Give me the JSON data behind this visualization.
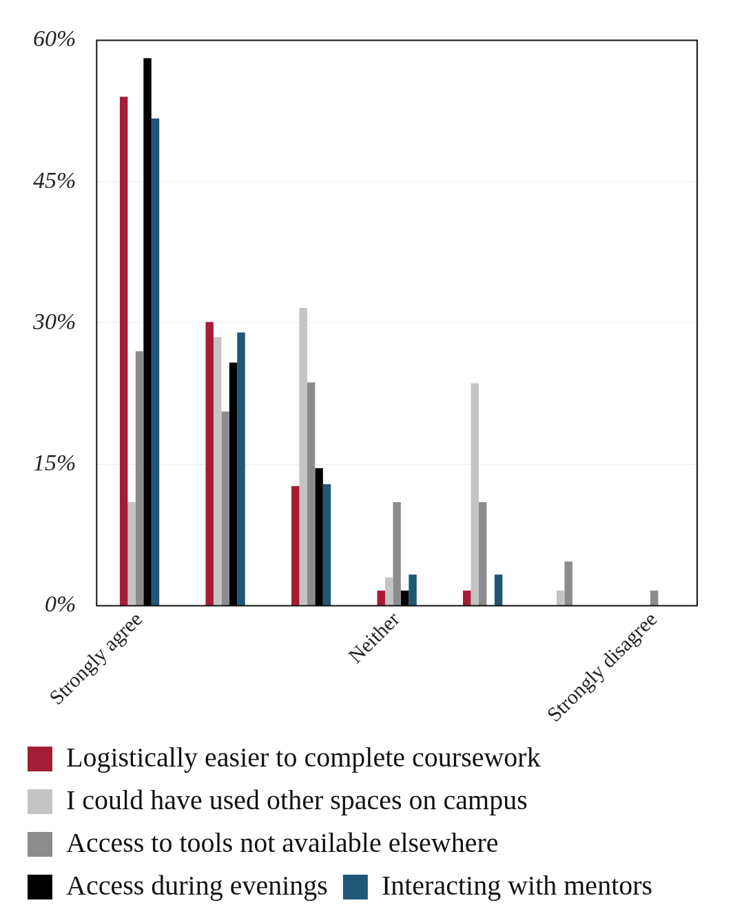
{
  "chart_data": {
    "type": "bar",
    "categories": [
      "Strongly agree",
      null,
      null,
      "Neither",
      null,
      null,
      "Strongly disagree"
    ],
    "series": [
      {
        "name": "Logistically easier to complete coursework",
        "color": "#a51c36",
        "values": [
          54,
          30.1,
          12.7,
          1.6,
          1.6,
          0,
          0
        ]
      },
      {
        "name": "I could have used other spaces on campus",
        "color": "#c4c4c4",
        "values": [
          11,
          28.5,
          31.6,
          3,
          23.6,
          1.6,
          0
        ]
      },
      {
        "name": "Access to tools not available elsewhere",
        "color": "#8c8c8c",
        "values": [
          27,
          20.6,
          23.7,
          11,
          11,
          4.7,
          1.6
        ]
      },
      {
        "name": "Access during evenings",
        "color": "#000000",
        "values": [
          58.1,
          25.8,
          14.6,
          1.6,
          0,
          0,
          0
        ]
      },
      {
        "name": "Interacting with mentors",
        "color": "#1f5876",
        "values": [
          51.7,
          29,
          12.9,
          3.3,
          3.3,
          0,
          0
        ]
      }
    ],
    "ylim": [
      0,
      60
    ],
    "yticks": [
      {
        "value": 0,
        "label": "0%"
      },
      {
        "value": 15,
        "label": "15%"
      },
      {
        "value": 30,
        "label": "30%"
      },
      {
        "value": 45,
        "label": "45%"
      },
      {
        "value": 60,
        "label": "60%"
      }
    ],
    "grid": "y",
    "legend": "bottom"
  }
}
